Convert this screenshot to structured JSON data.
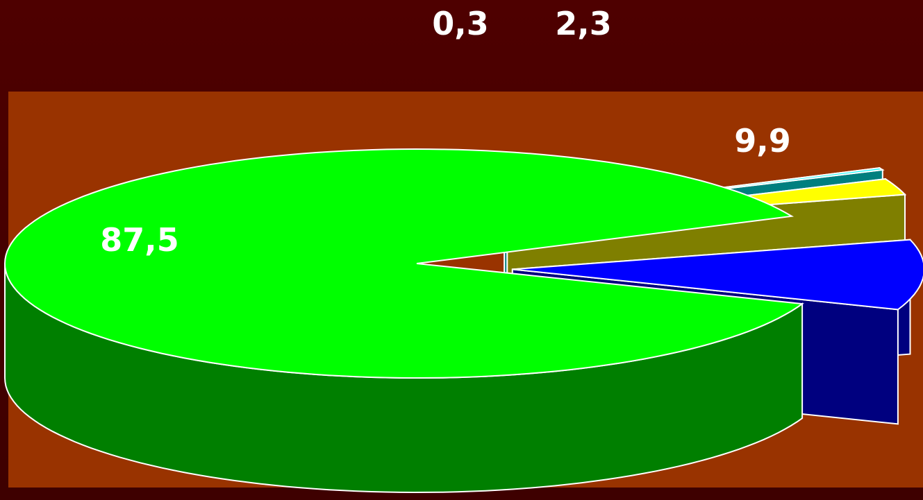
{
  "chart_data": {
    "type": "pie",
    "style": "3d-exploded",
    "legend": "none",
    "slices": [
      {
        "label": "87,5",
        "value": 87.5,
        "top_color": "#00ff00",
        "side_color": "#007f00",
        "exploded": false
      },
      {
        "label": "0,3",
        "value": 0.3,
        "top_color": "#00ffff",
        "side_color": "#007f7f",
        "exploded": true
      },
      {
        "label": "2,3",
        "value": 2.3,
        "top_color": "#ffff00",
        "side_color": "#7f7f00",
        "exploded": true
      },
      {
        "label": "9,9",
        "value": 9.9,
        "top_color": "#0000ff",
        "side_color": "#00007f",
        "exploded": true
      }
    ]
  },
  "colors": {
    "background": "#4e0000",
    "plot_area": "#993300",
    "outline": "#ffffff"
  }
}
